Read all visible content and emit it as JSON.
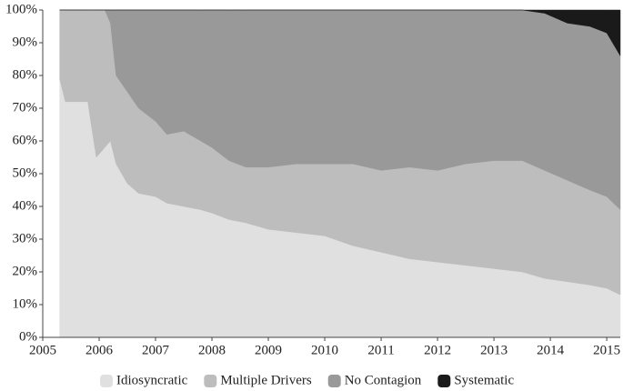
{
  "chart_data": {
    "type": "stacked_area",
    "x": [
      2005.3,
      2005.4,
      2005.8,
      2005.85,
      2005.95,
      2006.1,
      2006.2,
      2006.3,
      2006.5,
      2006.7,
      2007,
      2007.2,
      2007.5,
      2007.8,
      2008,
      2008.3,
      2008.6,
      2009,
      2009.5,
      2010,
      2010.5,
      2011,
      2011.5,
      2012,
      2012.5,
      2013,
      2013.5,
      2013.9,
      2014.3,
      2014.7,
      2015,
      2015.24
    ],
    "series": [
      {
        "name": "Idiosyncratic",
        "color": "#e0e0e0",
        "values": [
          79,
          72,
          72,
          66,
          55,
          58,
          60,
          53,
          47,
          44,
          43,
          41,
          40,
          39,
          38,
          36,
          35,
          33,
          32,
          31,
          28,
          26,
          24,
          23,
          22,
          21,
          20,
          18,
          17,
          16,
          15,
          13
        ]
      },
      {
        "name": "Multiple Drivers",
        "color": "#bdbdbd",
        "values": [
          21,
          28,
          28,
          34,
          45,
          42,
          36,
          27,
          28,
          26,
          23,
          21,
          23,
          21,
          20,
          18,
          17,
          19,
          21,
          22,
          25,
          25,
          28,
          28,
          31,
          33,
          34,
          33,
          31,
          29,
          28,
          26
        ]
      },
      {
        "name": "No Contagion",
        "color": "#999999",
        "values": [
          0,
          0,
          0,
          0,
          0,
          0,
          4,
          20,
          25,
          30,
          34,
          38,
          37,
          40,
          42,
          46,
          48,
          48,
          47,
          47,
          47,
          49,
          48,
          49,
          47,
          46,
          46,
          48,
          48,
          50,
          50,
          47
        ]
      },
      {
        "name": "Systematic",
        "color": "#1a1a1a",
        "values": [
          0,
          0,
          0,
          0,
          0,
          0,
          0,
          0,
          0,
          0,
          0,
          0,
          0,
          0,
          0,
          0,
          0,
          0,
          0,
          0,
          0,
          0,
          0,
          0,
          0,
          0,
          0,
          1,
          4,
          5,
          7,
          14
        ]
      }
    ],
    "xlim": [
      2005,
      2015.24
    ],
    "xticks": [
      2005,
      2006,
      2007,
      2008,
      2009,
      2010,
      2011,
      2012,
      2013,
      2014,
      2015
    ],
    "ylim": [
      0,
      100
    ],
    "yticks": [
      {
        "value": 0,
        "label": "0%"
      },
      {
        "value": 10,
        "label": "10%"
      },
      {
        "value": 20,
        "label": "20%"
      },
      {
        "value": 30,
        "label": "30%"
      },
      {
        "value": 40,
        "label": "40%"
      },
      {
        "value": 50,
        "label": "50%"
      },
      {
        "value": 60,
        "label": "60%"
      },
      {
        "value": 70,
        "label": "70%"
      },
      {
        "value": 80,
        "label": "80%"
      },
      {
        "value": 90,
        "label": "90%"
      },
      {
        "value": 100,
        "label": "100%"
      }
    ],
    "legend": "bottom"
  }
}
